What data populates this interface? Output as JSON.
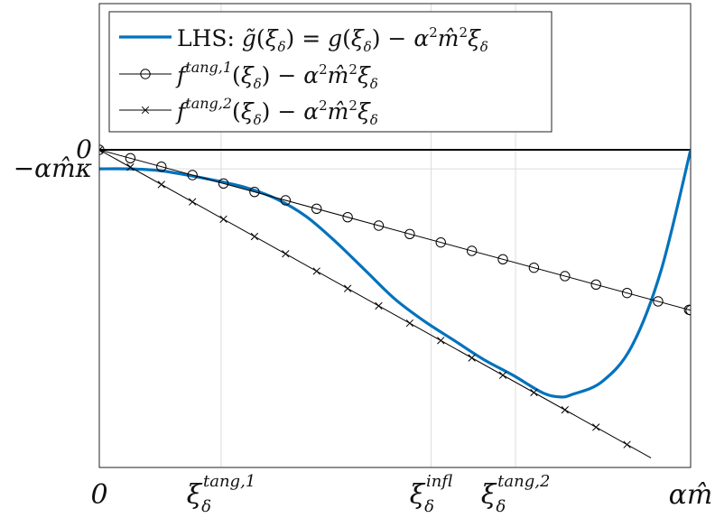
{
  "chart_data": {
    "type": "line",
    "title": "",
    "xlabel": "",
    "ylabel": "",
    "grid": true,
    "legend_position": "top-left",
    "xlim": [
      0,
      1
    ],
    "ylim": [
      -1.0,
      0.0
    ],
    "x_ticks": [
      {
        "value": 0.0,
        "label": "0"
      },
      {
        "value": 0.206,
        "label": "ξ_δ^{tang,1}"
      },
      {
        "value": 0.561,
        "label": "ξ_δ^{infl}"
      },
      {
        "value": 0.704,
        "label": "ξ_δ^{tang,2}"
      },
      {
        "value": 1.0,
        "label": "αm̂"
      }
    ],
    "y_ticks": [
      {
        "value": 0.0,
        "label": "0"
      },
      {
        "value": -0.06,
        "label": "−αm̂κ"
      }
    ],
    "series": [
      {
        "name": "LHS: g̃(ξ_δ) = g(ξ_δ) − α²m̂²ξ_δ",
        "color": "#0072BD",
        "marker": "none",
        "x": [
          0,
          0.05,
          0.1,
          0.15,
          0.2,
          0.25,
          0.3,
          0.35,
          0.4,
          0.45,
          0.5,
          0.55,
          0.6,
          0.65,
          0.7,
          0.75,
          0.78,
          0.8,
          0.85,
          0.9,
          0.95,
          1.0
        ],
        "y": [
          -0.06,
          -0.06,
          -0.065,
          -0.08,
          -0.098,
          -0.12,
          -0.155,
          -0.21,
          -0.29,
          -0.38,
          -0.47,
          -0.54,
          -0.6,
          -0.66,
          -0.71,
          -0.765,
          -0.778,
          -0.77,
          -0.73,
          -0.62,
          -0.38,
          0.0
        ]
      },
      {
        "name": "f^{tang,1}(ξ_δ) − α²m̂²ξ_δ",
        "color": "#000000",
        "marker": "circle",
        "x": [
          0.0,
          1.0
        ],
        "y": [
          0.0,
          -0.505
        ]
      },
      {
        "name": "f^{tang,2}(ξ_δ) − α²m̂²ξ_δ",
        "color": "#000000",
        "marker": "cross",
        "x": [
          0.0,
          0.933
        ],
        "y": [
          0.0,
          -0.97
        ]
      }
    ]
  }
}
